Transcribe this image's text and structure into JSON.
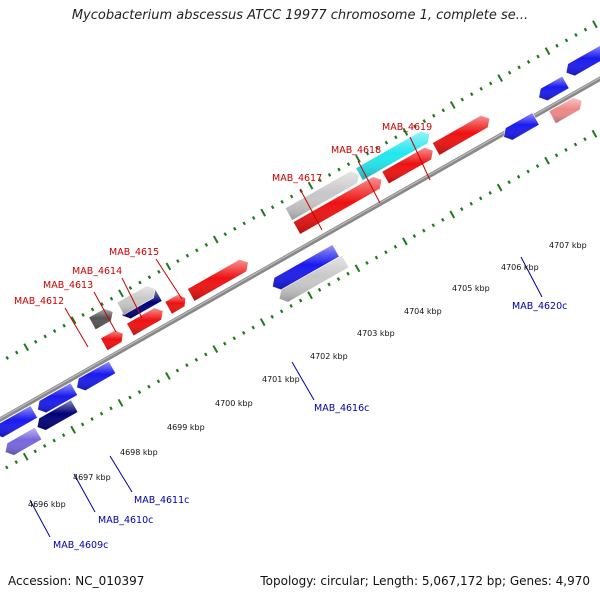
{
  "map": {
    "title": "Mycobacterium abscessus ATCC 19977 chromosome 1, complete se...",
    "accession": "Accession: NC_010397",
    "summary": "Topology: circular; Length: 5,067,172 bp; Genes: 4,970"
  },
  "scale_labels": [
    "4696 kbp",
    "4697 kbp",
    "4698 kbp",
    "4699 kbp",
    "4700 kbp",
    "4701 kbp",
    "4702 kbp",
    "4703 kbp",
    "4704 kbp",
    "4705 kbp",
    "4706 kbp",
    "4707 kbp"
  ],
  "gene_labels": {
    "forward": [
      "MAB_4612",
      "MAB_4613",
      "MAB_4614",
      "MAB_4615",
      "MAB_4617",
      "MAB_4618",
      "MAB_4619"
    ],
    "reverse": [
      "MAB_4609c",
      "MAB_4610c",
      "MAB_4611c",
      "MAB_4616c",
      "MAB_4620c"
    ]
  },
  "colors": {
    "forward_gene": "#ee1111",
    "reverse_gene": "#1a1aee",
    "forward_label": "#cc0000",
    "reverse_label": "#0000aa",
    "backbone": "#888888",
    "tick": "#1f7a1f",
    "pseudo_grey": "#c8c8c8",
    "cyan_gene": "#22e6ee",
    "pink_gene": "#ee8888",
    "navy_gene": "#000077",
    "purple_gene": "#7766dd",
    "darkgrey_gene": "#555555"
  }
}
